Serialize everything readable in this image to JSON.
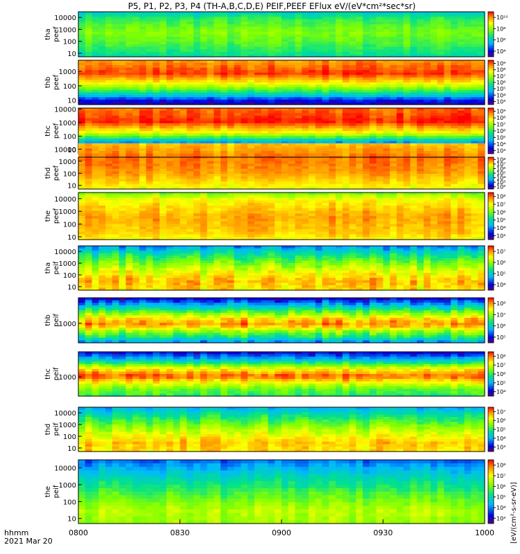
{
  "chart_data": {
    "type": "heatmap",
    "title": "P5, P1, P2, P3, P4 (TH-A,B,C,D,E) PEIF,PEEF EFlux eV/(eV*cm²*sec*sr)",
    "x_axis": {
      "label_line1": "hhmm",
      "label_line2": "2021 Mar 20",
      "ticks": [
        "0800",
        "0830",
        "0900",
        "0930",
        "1000"
      ],
      "range": [
        "08:00",
        "10:00"
      ]
    },
    "colorbar_units": "[eV/(cm²-s-sr-eV)]",
    "panels": [
      {
        "name": "tha peef",
        "line1": "tha",
        "line2": "peef",
        "yticks": [
          "10",
          "100",
          "1000",
          "10000"
        ],
        "ylog": true,
        "yrange": [
          5,
          30000
        ],
        "cbar_ticks": [
          "10⁴",
          "10⁶",
          "10⁸",
          "10¹⁰"
        ],
        "cbar_log_range": [
          3,
          10
        ],
        "profile": [
          [
            0,
            5.5
          ],
          [
            0.15,
            6.5
          ],
          [
            0.45,
            7.2
          ],
          [
            0.7,
            6.8
          ],
          [
            1,
            6.0
          ]
        ]
      },
      {
        "name": "thb peef",
        "line1": "thb",
        "line2": "peef",
        "yticks": [
          "10",
          "100",
          "1000"
        ],
        "ylog": true,
        "yrange": [
          5,
          6000
        ],
        "cbar_ticks": [
          "10³",
          "10⁴",
          "10⁵",
          "10⁶",
          "10⁷",
          "10⁸",
          "10⁹"
        ],
        "cbar_log_range": [
          2.5,
          9.5
        ],
        "profile": [
          [
            0,
            8.5
          ],
          [
            0.3,
            9.2
          ],
          [
            0.55,
            7.5
          ],
          [
            0.75,
            5.5
          ],
          [
            0.9,
            3.5
          ],
          [
            1,
            3.0
          ]
        ]
      },
      {
        "name": "thc peef",
        "line1": "thc",
        "line2": "peef",
        "yticks": [
          "10",
          "100",
          "1000",
          "10000"
        ],
        "ylog": true,
        "yrange": [
          5,
          12000
        ],
        "cbar_ticks": [
          "10³",
          "10⁴",
          "10⁵",
          "10⁶",
          "10⁷",
          "10⁸",
          "10⁹"
        ],
        "cbar_log_range": [
          2.5,
          9.5
        ],
        "profile": [
          [
            0,
            8.8
          ],
          [
            0.3,
            9.3
          ],
          [
            0.55,
            7.5
          ],
          [
            0.75,
            4.5
          ],
          [
            0.9,
            3.0
          ],
          [
            1,
            2.8
          ]
        ]
      },
      {
        "name": "thd peef",
        "line1": "thd",
        "line2": "peef",
        "yticks": [
          "10",
          "100",
          "1000",
          "10000"
        ],
        "ylog": true,
        "yrange": [
          5,
          30000
        ],
        "cbar_ticks": [
          "10²",
          "10³",
          "10⁴",
          "10⁵",
          "10⁶",
          "10⁷",
          "10⁸"
        ],
        "cbar_log_range": [
          1.5,
          8.5
        ],
        "profile": [
          [
            0,
            7.2
          ],
          [
            0.3,
            7.8
          ],
          [
            0.6,
            7.6
          ],
          [
            0.85,
            7.0
          ],
          [
            1,
            6.5
          ]
        ]
      },
      {
        "name": "the peef",
        "line1": "the",
        "line2": "peef",
        "yticks": [
          "10",
          "100",
          "1000",
          "10000"
        ],
        "ylog": true,
        "yrange": [
          6,
          30000
        ],
        "cbar_ticks": [
          "10³",
          "10⁴",
          "10⁵",
          "10⁶",
          "10⁷",
          "10⁸"
        ],
        "cbar_log_range": [
          2.5,
          8.5
        ],
        "profile": [
          [
            0,
            6.0
          ],
          [
            0.15,
            7.0
          ],
          [
            0.5,
            7.6
          ],
          [
            0.85,
            7.4
          ],
          [
            1,
            7.0
          ]
        ]
      },
      {
        "name": "tha peif",
        "line1": "tha",
        "line2": "peif",
        "yticks": [
          "10",
          "100",
          "1000",
          "10000"
        ],
        "ylog": true,
        "yrange": [
          5,
          30000
        ],
        "cbar_ticks": [
          "10⁴",
          "10⁵",
          "10⁶",
          "10⁷"
        ],
        "cbar_log_range": [
          3.5,
          7.5
        ],
        "profile": [
          [
            0,
            4.5
          ],
          [
            0.2,
            5.3
          ],
          [
            0.5,
            6.2
          ],
          [
            0.8,
            6.8
          ],
          [
            1,
            6.6
          ]
        ]
      },
      {
        "name": "thb peif",
        "line1": "thb",
        "line2": "peif",
        "yticks": [
          "1000"
        ],
        "ylog": true,
        "yrange": [
          100,
          20000
        ],
        "cbar_ticks": [
          "10⁵",
          "10⁶",
          "10⁷",
          "10⁸"
        ],
        "cbar_log_range": [
          4.5,
          8.5
        ],
        "profile": [
          [
            0,
            4.8
          ],
          [
            0.2,
            6.0
          ],
          [
            0.45,
            7.6
          ],
          [
            0.6,
            8.0
          ],
          [
            0.75,
            7.0
          ],
          [
            0.9,
            6.2
          ],
          [
            1,
            5.5
          ]
        ]
      },
      {
        "name": "thc peif",
        "line1": "thc",
        "line2": "peif",
        "yticks": [
          "1000"
        ],
        "ylog": true,
        "yrange": [
          100,
          20000
        ],
        "cbar_ticks": [
          "10⁴",
          "10⁵",
          "10⁶",
          "10⁷",
          "10⁸"
        ],
        "cbar_log_range": [
          3.5,
          8.5
        ],
        "profile": [
          [
            0,
            4.0
          ],
          [
            0.15,
            5.0
          ],
          [
            0.4,
            7.4
          ],
          [
            0.55,
            8.2
          ],
          [
            0.7,
            7.2
          ],
          [
            0.85,
            6.4
          ],
          [
            1,
            6.0
          ]
        ]
      },
      {
        "name": "thd peif",
        "line1": "thd",
        "line2": "peif",
        "yticks": [
          "10",
          "100",
          "1000",
          "10000"
        ],
        "ylog": true,
        "yrange": [
          5,
          30000
        ],
        "cbar_ticks": [
          "10³",
          "10⁴",
          "10⁵",
          "10⁶",
          "10⁷"
        ],
        "cbar_log_range": [
          2.5,
          7.5
        ],
        "profile": [
          [
            0,
            4.0
          ],
          [
            0.2,
            4.8
          ],
          [
            0.5,
            5.8
          ],
          [
            0.8,
            6.6
          ],
          [
            1,
            6.4
          ]
        ]
      },
      {
        "name": "the peif",
        "line1": "the",
        "line2": "peif",
        "yticks": [
          "10",
          "100",
          "1000",
          "10000"
        ],
        "ylog": true,
        "yrange": [
          5,
          30000
        ],
        "cbar_ticks": [
          "10³",
          "10⁴",
          "10⁵",
          "10⁶",
          "10⁷",
          "10⁸"
        ],
        "cbar_log_range": [
          2.5,
          8.5
        ],
        "profile": [
          [
            0,
            3.8
          ],
          [
            0.25,
            4.8
          ],
          [
            0.55,
            5.8
          ],
          [
            0.8,
            6.5
          ],
          [
            1,
            6.3
          ]
        ]
      }
    ]
  }
}
